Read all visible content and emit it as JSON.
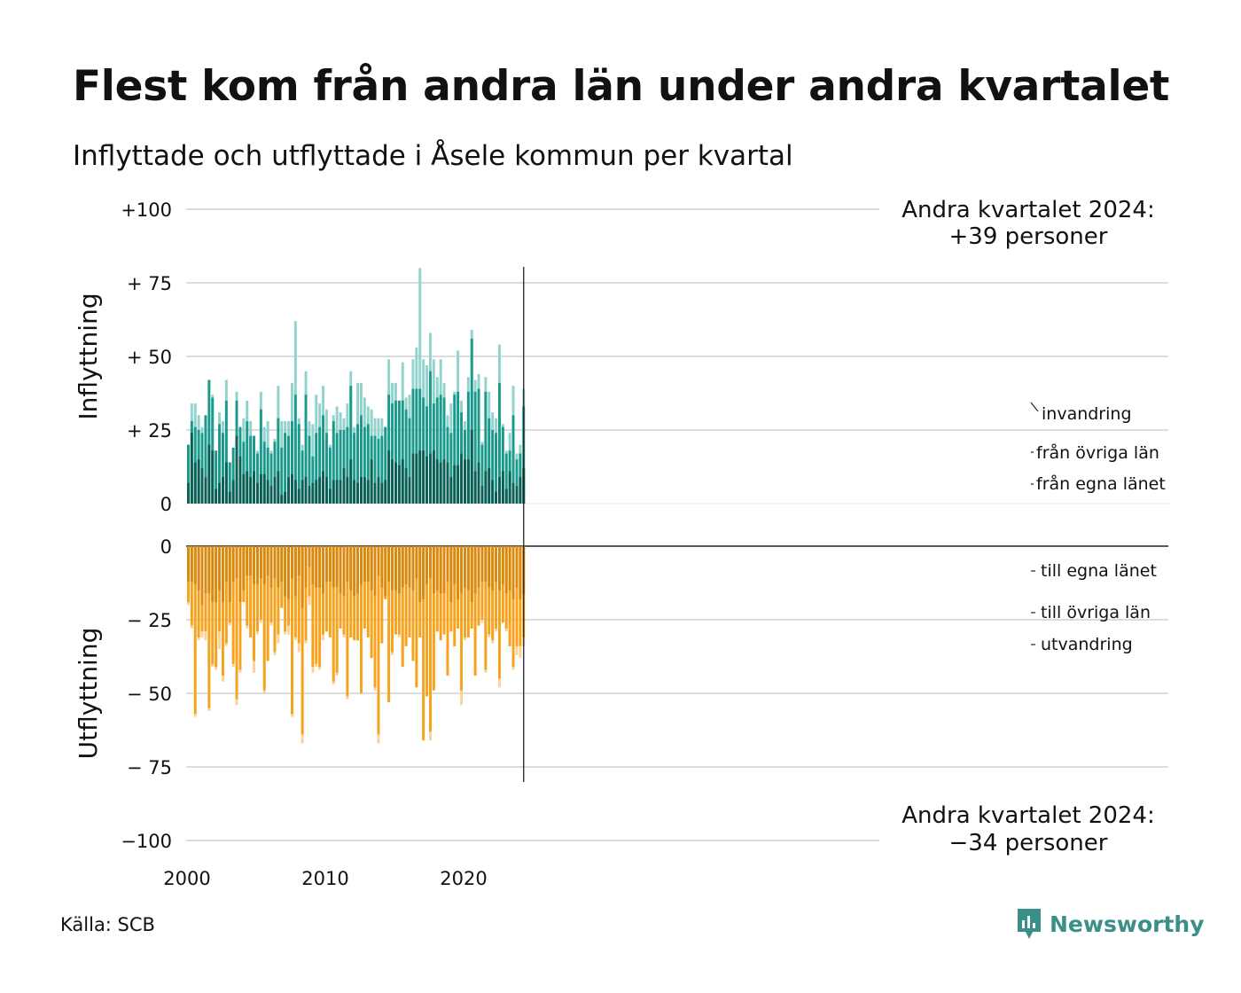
{
  "title": "Flest kom från andra län under andra kvartalet",
  "subtitle": "Inflyttade och utflyttade i Åsele kommun per kvartal",
  "source": "Källa: SCB",
  "logo": "Newsworthy",
  "colors": {
    "in_same_lan": "#0d5f56",
    "in_other_lan": "#1a9a8c",
    "in_immigration": "#8fd3cc",
    "out_same_lan": "#d88a10",
    "out_other_lan": "#f7a21c",
    "out_emigration": "#f9d49a",
    "logo": "#3a8f88"
  },
  "chart_data": {
    "type": "bar",
    "stacked": true,
    "x_ticks": [
      "2000",
      "2010",
      "2020"
    ],
    "y_ticks_in": [
      "+100",
      "+ 75",
      "+ 50",
      "+ 25",
      "0"
    ],
    "y_ticks_out": [
      "0",
      "− 25",
      "− 50",
      "− 75",
      "−100"
    ],
    "ylabel_in": "Inflyttning",
    "ylabel_out": "Utflyttning",
    "ylim_in": [
      0,
      100
    ],
    "ylim_out": [
      -100,
      0
    ],
    "annotation_in": [
      "Andra kvartalet 2024:",
      "+39 personer"
    ],
    "annotation_out": [
      "Andra kvartalet 2024:",
      "−34 personer"
    ],
    "legend_in": [
      "invandring",
      "från övriga län",
      "från egna länet"
    ],
    "legend_out": [
      "till egna länet",
      "till övriga län",
      "utvandring"
    ],
    "x_start": "2000-Q1",
    "x_end": "2024-Q2",
    "inflow_totals": [
      20,
      34,
      34,
      30,
      26,
      30,
      42,
      37,
      18,
      31,
      28,
      42,
      14,
      19,
      38,
      26,
      29,
      35,
      28,
      23,
      18,
      38,
      26,
      28,
      18,
      22,
      40,
      28,
      28,
      28,
      41,
      62,
      29,
      20,
      45,
      28,
      27,
      37,
      34,
      40,
      32,
      20,
      30,
      33,
      31,
      29,
      34,
      45,
      26,
      41,
      41,
      36,
      33,
      32,
      29,
      29,
      29,
      26,
      49,
      41,
      41,
      35,
      48,
      36,
      37,
      49,
      53,
      80,
      49,
      47,
      58,
      49,
      43,
      49,
      41,
      30,
      34,
      38,
      52,
      35,
      28,
      43,
      59,
      42,
      44,
      21,
      43,
      38,
      31,
      29,
      54,
      27,
      18,
      24,
      40,
      17,
      20,
      39
    ],
    "inflow_own_lan": [
      7,
      24,
      14,
      15,
      12,
      9,
      20,
      18,
      5,
      7,
      9,
      14,
      4,
      8,
      23,
      16,
      10,
      11,
      9,
      11,
      7,
      10,
      10,
      8,
      6,
      9,
      11,
      3,
      4,
      9,
      10,
      8,
      5,
      8,
      9,
      6,
      7,
      8,
      9,
      11,
      9,
      5,
      8,
      8,
      8,
      12,
      9,
      15,
      8,
      7,
      9,
      9,
      8,
      15,
      7,
      9,
      7,
      8,
      18,
      15,
      14,
      13,
      15,
      12,
      9,
      17,
      17,
      18,
      18,
      16,
      17,
      18,
      15,
      14,
      15,
      14,
      9,
      13,
      13,
      17,
      15,
      15,
      25,
      11,
      14,
      6,
      11,
      12,
      8,
      4,
      9,
      11,
      5,
      11,
      7,
      6,
      9,
      12
    ],
    "inflow_other_lan": [
      20,
      28,
      26,
      25,
      24,
      30,
      42,
      36,
      18,
      27,
      24,
      35,
      14,
      19,
      35,
      26,
      21,
      28,
      23,
      23,
      17,
      32,
      21,
      19,
      17,
      21,
      29,
      19,
      24,
      23,
      28,
      37,
      27,
      18,
      37,
      23,
      16,
      24,
      26,
      30,
      24,
      19,
      28,
      24,
      25,
      25,
      26,
      40,
      24,
      27,
      30,
      26,
      27,
      23,
      23,
      22,
      23,
      26,
      37,
      34,
      35,
      35,
      35,
      32,
      29,
      39,
      39,
      39,
      36,
      33,
      45,
      34,
      36,
      37,
      36,
      26,
      24,
      37,
      38,
      31,
      25,
      38,
      56,
      38,
      39,
      20,
      38,
      29,
      25,
      24,
      41,
      26,
      17,
      18,
      30,
      15,
      17,
      33
    ],
    "outflow_totals": [
      -20,
      -28,
      -58,
      -32,
      -31,
      -32,
      -56,
      -41,
      -42,
      -35,
      -46,
      -34,
      -27,
      -41,
      -54,
      -43,
      -19,
      -28,
      -31,
      -43,
      -30,
      -26,
      -50,
      -39,
      -27,
      -37,
      -33,
      -21,
      -30,
      -30,
      -58,
      -32,
      -36,
      -67,
      -33,
      -20,
      -43,
      -41,
      -42,
      -32,
      -29,
      -31,
      -47,
      -44,
      -28,
      -31,
      -52,
      -31,
      -32,
      -32,
      -50,
      -28,
      -31,
      -38,
      -49,
      -67,
      -33,
      -18,
      -53,
      -37,
      -30,
      -31,
      -41,
      -34,
      -31,
      -39,
      -48,
      -31,
      -66,
      -51,
      -66,
      -49,
      -29,
      -32,
      -30,
      -44,
      -29,
      -34,
      -28,
      -54,
      -32,
      -31,
      -28,
      -44,
      -27,
      -26,
      -43,
      -31,
      -33,
      -29,
      -48,
      -26,
      -29,
      -34,
      -42,
      -37,
      -38,
      -34
    ],
    "outflow_own_lan": [
      -12,
      -12,
      -13,
      -15,
      -20,
      -16,
      -16,
      -19,
      -19,
      -15,
      -19,
      -12,
      -19,
      -12,
      -11,
      -19,
      -15,
      -10,
      -10,
      -13,
      -13,
      -11,
      -13,
      -10,
      -14,
      -11,
      -14,
      -12,
      -17,
      -18,
      -11,
      -17,
      -10,
      -21,
      -14,
      -7,
      -13,
      -14,
      -14,
      -16,
      -12,
      -12,
      -14,
      -14,
      -16,
      -17,
      -12,
      -15,
      -17,
      -16,
      -13,
      -12,
      -12,
      -15,
      -17,
      -10,
      -14,
      -17,
      -12,
      -15,
      -15,
      -16,
      -14,
      -13,
      -14,
      -15,
      -11,
      -19,
      -18,
      -13,
      -11,
      -16,
      -15,
      -16,
      -16,
      -12,
      -19,
      -13,
      -18,
      -16,
      -14,
      -15,
      -19,
      -16,
      -14,
      -12,
      -12,
      -14,
      -15,
      -12,
      -15,
      -13,
      -16,
      -15,
      -18,
      -14,
      -18,
      -16
    ],
    "outflow_other_lan": [
      -19,
      -27,
      -57,
      -31,
      -29,
      -29,
      -55,
      -40,
      -41,
      -29,
      -44,
      -33,
      -26,
      -40,
      -52,
      -42,
      -19,
      -27,
      -31,
      -39,
      -29,
      -25,
      -49,
      -39,
      -26,
      -36,
      -30,
      -21,
      -29,
      -27,
      -57,
      -31,
      -33,
      -64,
      -32,
      -17,
      -41,
      -40,
      -41,
      -30,
      -29,
      -31,
      -46,
      -43,
      -28,
      -30,
      -51,
      -31,
      -32,
      -32,
      -50,
      -28,
      -31,
      -38,
      -48,
      -64,
      -33,
      -18,
      -53,
      -36,
      -30,
      -30,
      -41,
      -34,
      -31,
      -39,
      -48,
      -31,
      -66,
      -51,
      -63,
      -49,
      -29,
      -32,
      -30,
      -44,
      -29,
      -34,
      -28,
      -49,
      -31,
      -31,
      -28,
      -44,
      -27,
      -25,
      -42,
      -30,
      -32,
      -28,
      -45,
      -26,
      -28,
      -34,
      -41,
      -34,
      -34,
      -31
    ]
  }
}
